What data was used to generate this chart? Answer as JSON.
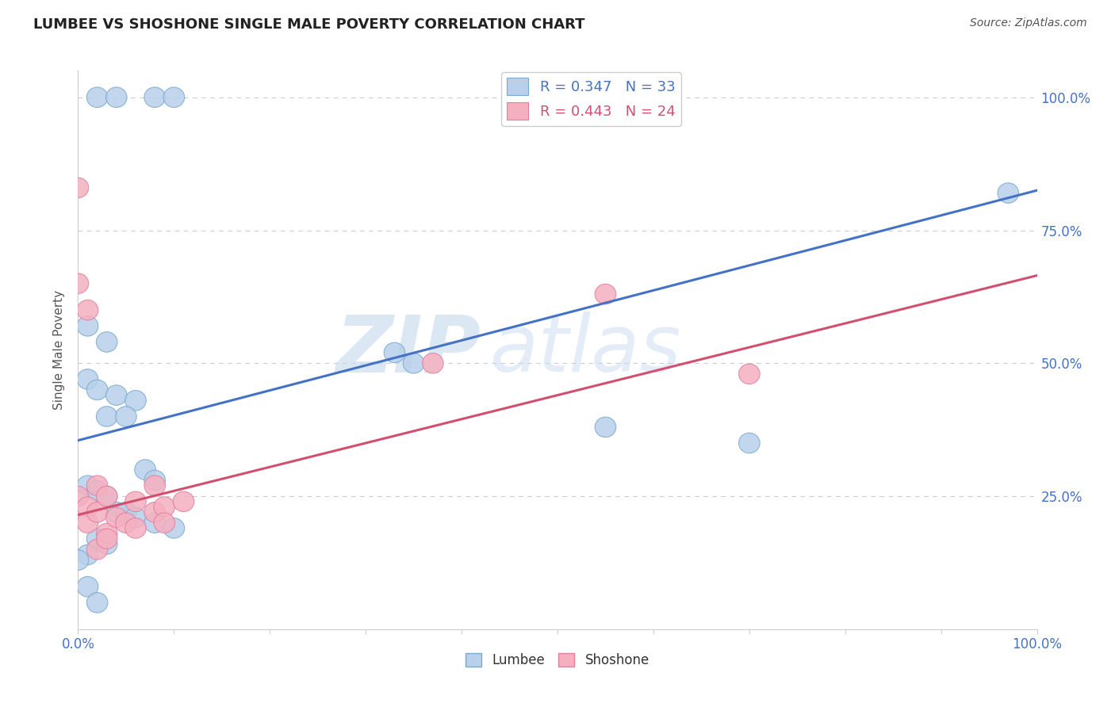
{
  "title": "LUMBEE VS SHOSHONE SINGLE MALE POVERTY CORRELATION CHART",
  "source": "Source: ZipAtlas.com",
  "ylabel": "Single Male Poverty",
  "lumbee_R": 0.347,
  "lumbee_N": 33,
  "shoshone_R": 0.443,
  "shoshone_N": 24,
  "lumbee_color": "#b8d0ea",
  "shoshone_color": "#f5b0c0",
  "lumbee_edge_color": "#7aaad0",
  "shoshone_edge_color": "#e080a0",
  "lumbee_line_color": "#4472C4",
  "shoshone_line_color": "#d05070",
  "watermark": "ZIPatlas",
  "lumbee_line_intercept": 0.355,
  "lumbee_line_slope": 0.47,
  "shoshone_line_intercept": 0.215,
  "shoshone_line_slope": 0.45,
  "lumbee_x": [
    0.02,
    0.04,
    0.08,
    0.1,
    0.01,
    0.03,
    0.01,
    0.02,
    0.04,
    0.06,
    0.03,
    0.05,
    0.07,
    0.08,
    0.01,
    0.02,
    0.03,
    0.04,
    0.05,
    0.06,
    0.08,
    0.1,
    0.02,
    0.03,
    0.01,
    0.0,
    0.01,
    0.02,
    0.33,
    0.35,
    0.55,
    0.7,
    0.97
  ],
  "lumbee_y": [
    1.0,
    1.0,
    1.0,
    1.0,
    0.57,
    0.54,
    0.47,
    0.45,
    0.44,
    0.43,
    0.4,
    0.4,
    0.3,
    0.28,
    0.27,
    0.26,
    0.25,
    0.22,
    0.22,
    0.21,
    0.2,
    0.19,
    0.17,
    0.16,
    0.14,
    0.13,
    0.08,
    0.05,
    0.52,
    0.5,
    0.38,
    0.35,
    0.82
  ],
  "shoshone_x": [
    0.0,
    0.01,
    0.01,
    0.02,
    0.02,
    0.03,
    0.03,
    0.04,
    0.05,
    0.06,
    0.06,
    0.08,
    0.08,
    0.09,
    0.09,
    0.11,
    0.0,
    0.0,
    0.01,
    0.02,
    0.03,
    0.37,
    0.55,
    0.7
  ],
  "shoshone_y": [
    0.25,
    0.23,
    0.2,
    0.27,
    0.22,
    0.25,
    0.18,
    0.21,
    0.2,
    0.24,
    0.19,
    0.27,
    0.22,
    0.23,
    0.2,
    0.24,
    0.83,
    0.65,
    0.6,
    0.15,
    0.17,
    0.5,
    0.63,
    0.48
  ],
  "background_color": "#ffffff",
  "grid_color": "#cccccc",
  "xlim": [
    0.0,
    1.0
  ],
  "ylim": [
    0.0,
    1.05
  ]
}
